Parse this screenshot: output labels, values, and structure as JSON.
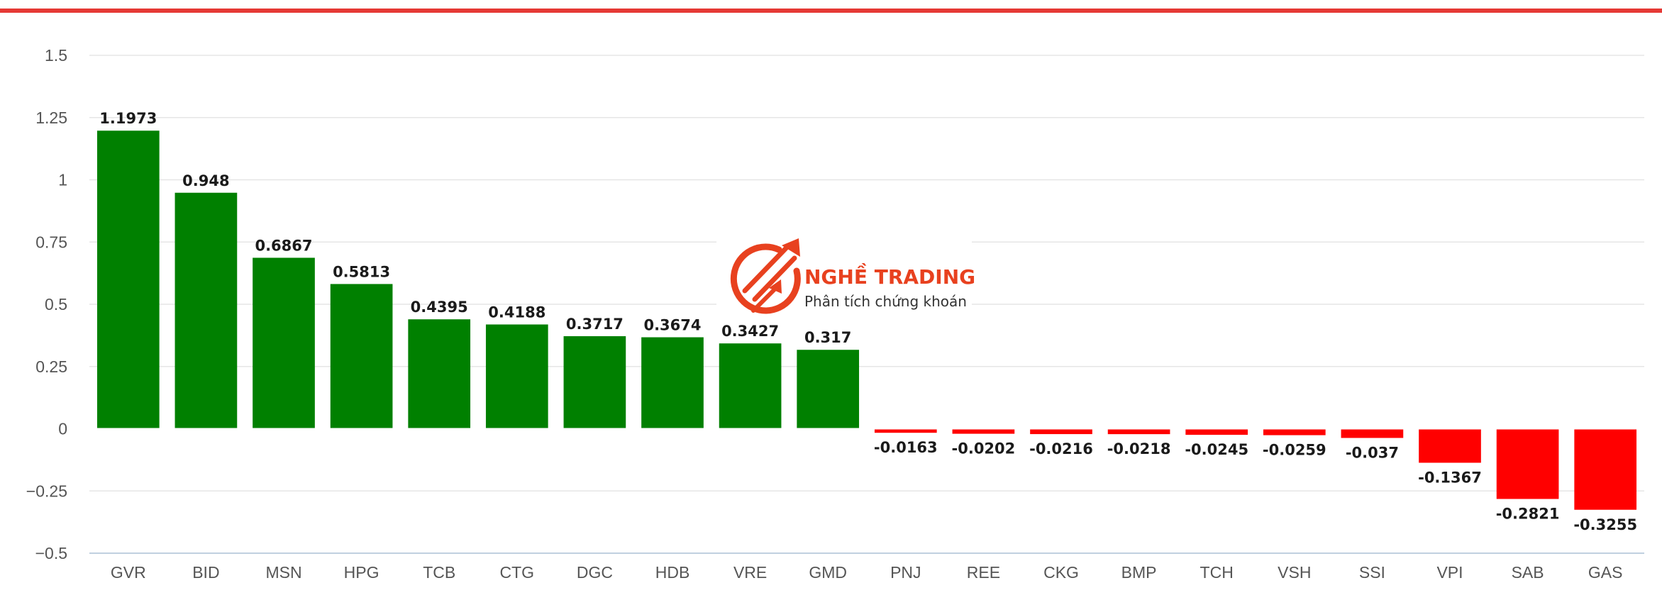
{
  "watermark": {
    "brand": "NGHỀ TRADING",
    "tagline": "Phân tích chứng khoán",
    "color": "#e8411f"
  },
  "colors": {
    "positive": "#008000",
    "negative": "#ff0000",
    "header_rule": "#e53935",
    "grid": "#e6e6e6",
    "axis_line": "#c0d0e0"
  },
  "chart_data": {
    "type": "bar",
    "title": "",
    "xlabel": "",
    "ylabel": "",
    "categories": [
      "GVR",
      "BID",
      "MSN",
      "HPG",
      "TCB",
      "CTG",
      "DGC",
      "HDB",
      "VRE",
      "GMD",
      "PNJ",
      "REE",
      "CKG",
      "BMP",
      "TCH",
      "VSH",
      "SSI",
      "VPI",
      "SAB",
      "GAS"
    ],
    "values": [
      1.1973,
      0.948,
      0.6867,
      0.5813,
      0.4395,
      0.4188,
      0.3717,
      0.3674,
      0.3427,
      0.317,
      -0.0163,
      -0.0202,
      -0.0216,
      -0.0218,
      -0.0245,
      -0.0259,
      -0.037,
      -0.1367,
      -0.2821,
      -0.3255
    ],
    "value_labels": [
      "1.1973",
      "0.948",
      "0.6867",
      "0.5813",
      "0.4395",
      "0.4188",
      "0.3717",
      "0.3674",
      "0.3427",
      "0.317",
      "-0.0163",
      "-0.0202",
      "-0.0216",
      "-0.0218",
      "-0.0245",
      "-0.0259",
      "-0.037",
      "-0.1367",
      "-0.2821",
      "-0.3255"
    ],
    "ylim": [
      -0.5,
      1.5
    ],
    "yticks": [
      -0.5,
      -0.25,
      0,
      0.25,
      0.5,
      0.75,
      1,
      1.25,
      1.5
    ],
    "ytick_labels": [
      "−0.5",
      "−0.25",
      "0",
      "0.25",
      "0.5",
      "0.75",
      "1",
      "1.25",
      "1.5"
    ],
    "grid": true,
    "legend": "none"
  }
}
